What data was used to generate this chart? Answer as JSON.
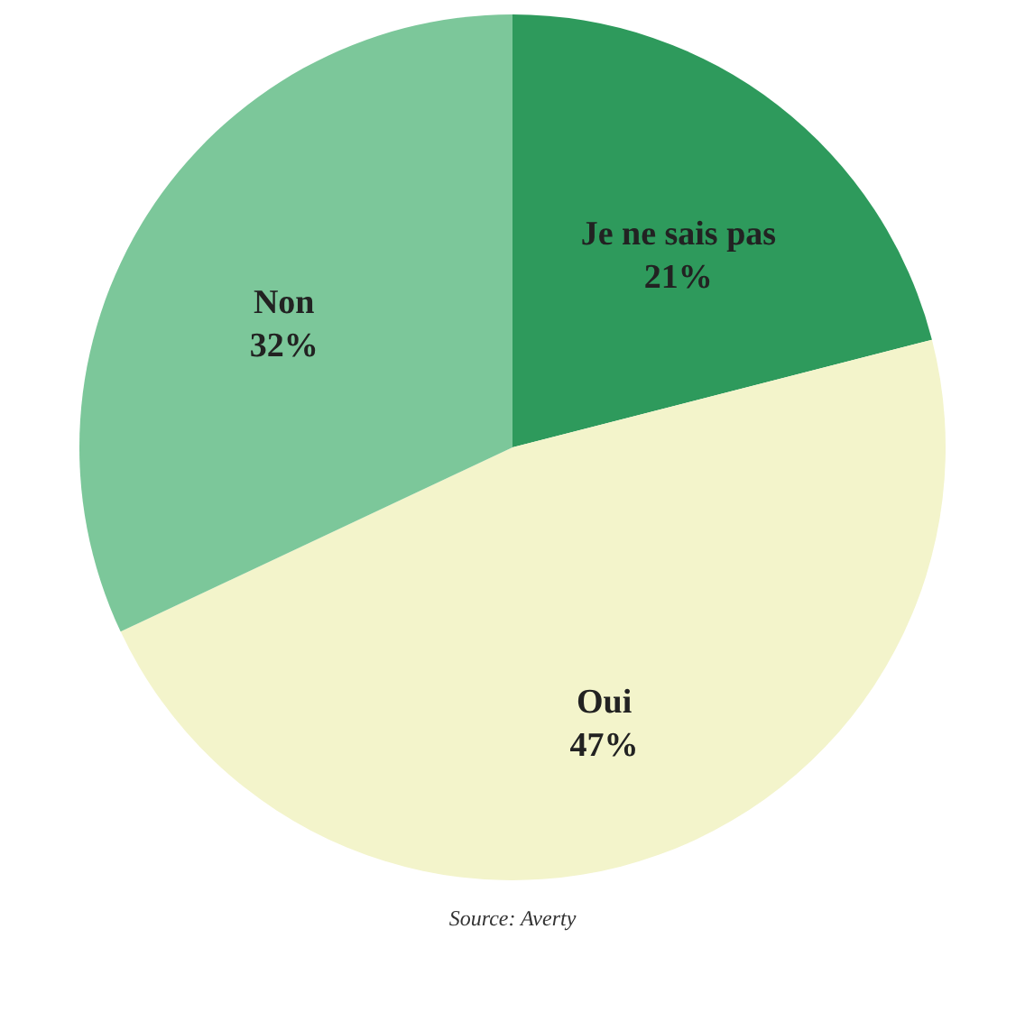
{
  "chart_data": {
    "type": "pie",
    "categories": [
      "Je ne sais pas",
      "Oui",
      "Non"
    ],
    "values": [
      21,
      47,
      32
    ],
    "value_labels": [
      "21%",
      "47%",
      "32%"
    ],
    "colors": [
      "#2e9a5c",
      "#f3f4cb",
      "#7cc79a"
    ],
    "annotations": [
      "Source: Averty"
    ]
  }
}
